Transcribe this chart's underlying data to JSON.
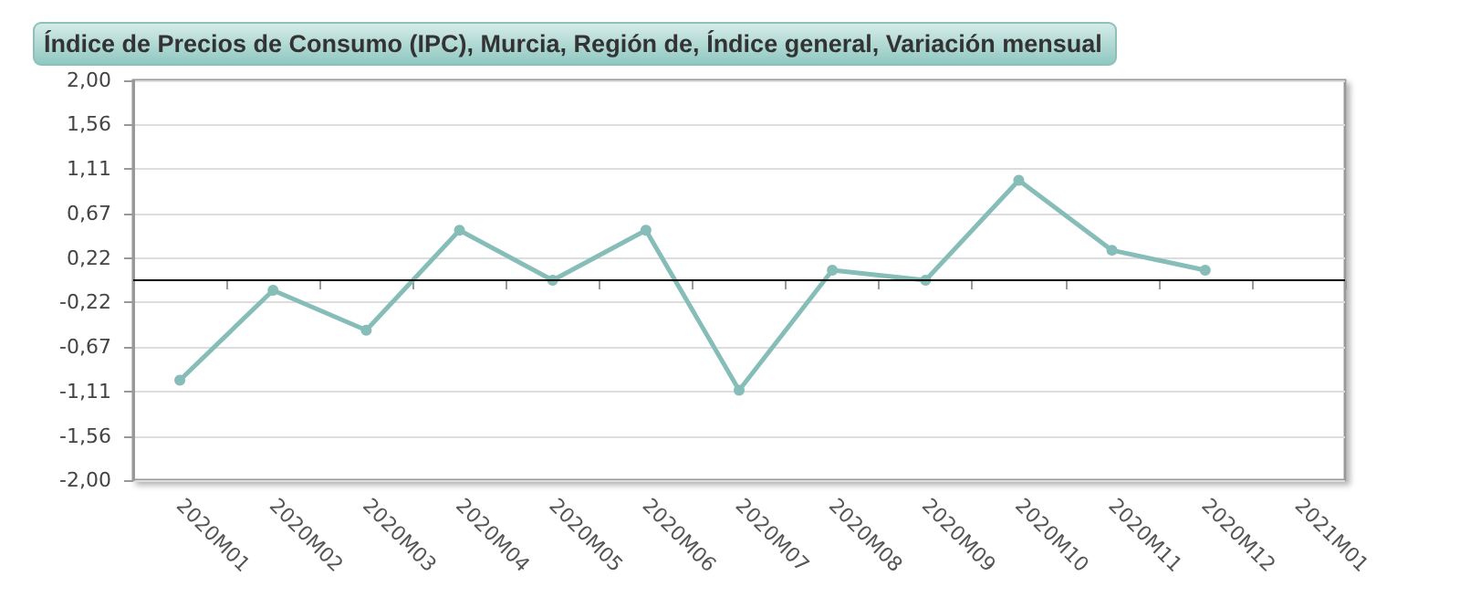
{
  "chart_data": {
    "type": "line",
    "title": "Índice de Precios de Consumo (IPC), Murcia, Región de, Índice general, Variación mensual",
    "categories": [
      "2020M01",
      "2020M02",
      "2020M03",
      "2020M04",
      "2020M05",
      "2020M06",
      "2020M07",
      "2020M08",
      "2020M09",
      "2020M10",
      "2020M11",
      "2020M12",
      "2021M01"
    ],
    "series": [
      {
        "color": "#86bdb8",
        "values": [
          -1.0,
          -0.1,
          -0.5,
          0.5,
          0.0,
          0.5,
          -1.1,
          0.1,
          0.0,
          1.0,
          0.3,
          0.1,
          null
        ]
      }
    ],
    "ylim": [
      -2,
      2
    ],
    "yticks": [
      {
        "value": -2,
        "label": "-2,00"
      },
      {
        "value": -1.56,
        "label": "-1,56"
      },
      {
        "value": -1.11,
        "label": "-1,11"
      },
      {
        "value": -0.67,
        "label": "-0,67"
      },
      {
        "value": -0.22,
        "label": "-0,22"
      },
      {
        "value": 0.22,
        "label": "0,22"
      },
      {
        "value": 0.67,
        "label": "0,67"
      },
      {
        "value": 1.11,
        "label": "1,11"
      },
      {
        "value": 1.56,
        "label": "1,56"
      },
      {
        "value": 2,
        "label": "2,00"
      }
    ],
    "ref_lines": [
      {
        "axis": "y",
        "value": 0,
        "color": "#000000",
        "line_style": "solid"
      }
    ],
    "grid": "y",
    "marker": "circle",
    "line_style": "solid"
  }
}
